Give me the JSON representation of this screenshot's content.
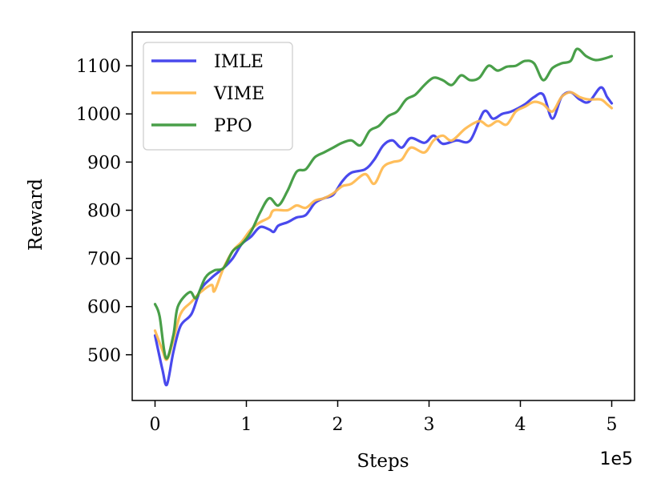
{
  "chart_data": {
    "type": "line",
    "xlabel": "Steps",
    "ylabel": "Reward",
    "x_offset_label": "1e5",
    "xlim": [
      -0.25,
      5.25
    ],
    "ylim": [
      405,
      1170
    ],
    "xticks": [
      0,
      1,
      2,
      3,
      4,
      5
    ],
    "yticks": [
      500,
      600,
      700,
      800,
      900,
      1000,
      1100
    ],
    "grid": false,
    "legend_position": "upper-left",
    "series": [
      {
        "name": "IMLE",
        "color": "#3a3aeb",
        "points": [
          [
            0,
            540
          ],
          [
            0.08,
            470
          ],
          [
            0.13,
            438
          ],
          [
            0.2,
            505
          ],
          [
            0.28,
            560
          ],
          [
            0.4,
            585
          ],
          [
            0.5,
            635
          ],
          [
            0.62,
            660
          ],
          [
            0.75,
            680
          ],
          [
            0.85,
            700
          ],
          [
            0.95,
            730
          ],
          [
            1.05,
            745
          ],
          [
            1.15,
            765
          ],
          [
            1.25,
            760
          ],
          [
            1.3,
            755
          ],
          [
            1.35,
            768
          ],
          [
            1.45,
            775
          ],
          [
            1.55,
            785
          ],
          [
            1.65,
            790
          ],
          [
            1.75,
            815
          ],
          [
            1.85,
            825
          ],
          [
            1.95,
            832
          ],
          [
            2.05,
            860
          ],
          [
            2.15,
            878
          ],
          [
            2.3,
            885
          ],
          [
            2.4,
            905
          ],
          [
            2.5,
            935
          ],
          [
            2.6,
            945
          ],
          [
            2.7,
            930
          ],
          [
            2.8,
            950
          ],
          [
            2.95,
            940
          ],
          [
            3.05,
            955
          ],
          [
            3.15,
            938
          ],
          [
            3.3,
            945
          ],
          [
            3.45,
            945
          ],
          [
            3.6,
            1005
          ],
          [
            3.7,
            990
          ],
          [
            3.8,
            1000
          ],
          [
            3.9,
            1005
          ],
          [
            4.05,
            1020
          ],
          [
            4.15,
            1035
          ],
          [
            4.25,
            1040
          ],
          [
            4.35,
            990
          ],
          [
            4.45,
            1035
          ],
          [
            4.55,
            1045
          ],
          [
            4.65,
            1030
          ],
          [
            4.75,
            1025
          ],
          [
            4.88,
            1055
          ],
          [
            4.95,
            1035
          ],
          [
            5.0,
            1022
          ]
        ]
      },
      {
        "name": "VIME",
        "color": "#ffb84d",
        "points": [
          [
            0,
            550
          ],
          [
            0.08,
            510
          ],
          [
            0.13,
            490
          ],
          [
            0.2,
            530
          ],
          [
            0.28,
            585
          ],
          [
            0.4,
            610
          ],
          [
            0.5,
            630
          ],
          [
            0.62,
            645
          ],
          [
            0.65,
            632
          ],
          [
            0.75,
            680
          ],
          [
            0.85,
            715
          ],
          [
            0.95,
            735
          ],
          [
            1.05,
            760
          ],
          [
            1.15,
            775
          ],
          [
            1.25,
            785
          ],
          [
            1.3,
            800
          ],
          [
            1.45,
            800
          ],
          [
            1.55,
            810
          ],
          [
            1.65,
            805
          ],
          [
            1.75,
            820
          ],
          [
            1.85,
            825
          ],
          [
            1.95,
            835
          ],
          [
            2.05,
            850
          ],
          [
            2.15,
            855
          ],
          [
            2.3,
            875
          ],
          [
            2.4,
            855
          ],
          [
            2.5,
            890
          ],
          [
            2.6,
            900
          ],
          [
            2.7,
            905
          ],
          [
            2.8,
            930
          ],
          [
            2.95,
            920
          ],
          [
            3.05,
            945
          ],
          [
            3.15,
            955
          ],
          [
            3.25,
            945
          ],
          [
            3.4,
            970
          ],
          [
            3.55,
            985
          ],
          [
            3.65,
            975
          ],
          [
            3.75,
            985
          ],
          [
            3.85,
            978
          ],
          [
            3.95,
            1005
          ],
          [
            4.05,
            1015
          ],
          [
            4.15,
            1025
          ],
          [
            4.25,
            1020
          ],
          [
            4.35,
            1005
          ],
          [
            4.45,
            1035
          ],
          [
            4.55,
            1045
          ],
          [
            4.65,
            1035
          ],
          [
            4.75,
            1030
          ],
          [
            4.88,
            1030
          ],
          [
            4.95,
            1020
          ],
          [
            5.0,
            1012
          ]
        ]
      },
      {
        "name": "PPO",
        "color": "#3a973a",
        "points": [
          [
            0,
            605
          ],
          [
            0.05,
            580
          ],
          [
            0.12,
            493
          ],
          [
            0.2,
            540
          ],
          [
            0.25,
            600
          ],
          [
            0.38,
            630
          ],
          [
            0.45,
            618
          ],
          [
            0.55,
            660
          ],
          [
            0.65,
            675
          ],
          [
            0.75,
            680
          ],
          [
            0.85,
            715
          ],
          [
            0.95,
            730
          ],
          [
            1.05,
            755
          ],
          [
            1.15,
            795
          ],
          [
            1.25,
            825
          ],
          [
            1.35,
            810
          ],
          [
            1.45,
            840
          ],
          [
            1.55,
            880
          ],
          [
            1.65,
            885
          ],
          [
            1.75,
            910
          ],
          [
            1.85,
            920
          ],
          [
            1.95,
            930
          ],
          [
            2.05,
            940
          ],
          [
            2.15,
            945
          ],
          [
            2.25,
            935
          ],
          [
            2.35,
            965
          ],
          [
            2.45,
            975
          ],
          [
            2.55,
            995
          ],
          [
            2.65,
            1005
          ],
          [
            2.75,
            1030
          ],
          [
            2.85,
            1040
          ],
          [
            2.95,
            1060
          ],
          [
            3.05,
            1075
          ],
          [
            3.15,
            1070
          ],
          [
            3.25,
            1060
          ],
          [
            3.35,
            1080
          ],
          [
            3.45,
            1070
          ],
          [
            3.55,
            1075
          ],
          [
            3.65,
            1100
          ],
          [
            3.75,
            1090
          ],
          [
            3.85,
            1098
          ],
          [
            3.95,
            1100
          ],
          [
            4.05,
            1110
          ],
          [
            4.15,
            1105
          ],
          [
            4.25,
            1070
          ],
          [
            4.35,
            1095
          ],
          [
            4.45,
            1105
          ],
          [
            4.55,
            1110
          ],
          [
            4.62,
            1135
          ],
          [
            4.72,
            1120
          ],
          [
            4.82,
            1112
          ],
          [
            4.92,
            1115
          ],
          [
            5.0,
            1120
          ]
        ]
      }
    ]
  }
}
